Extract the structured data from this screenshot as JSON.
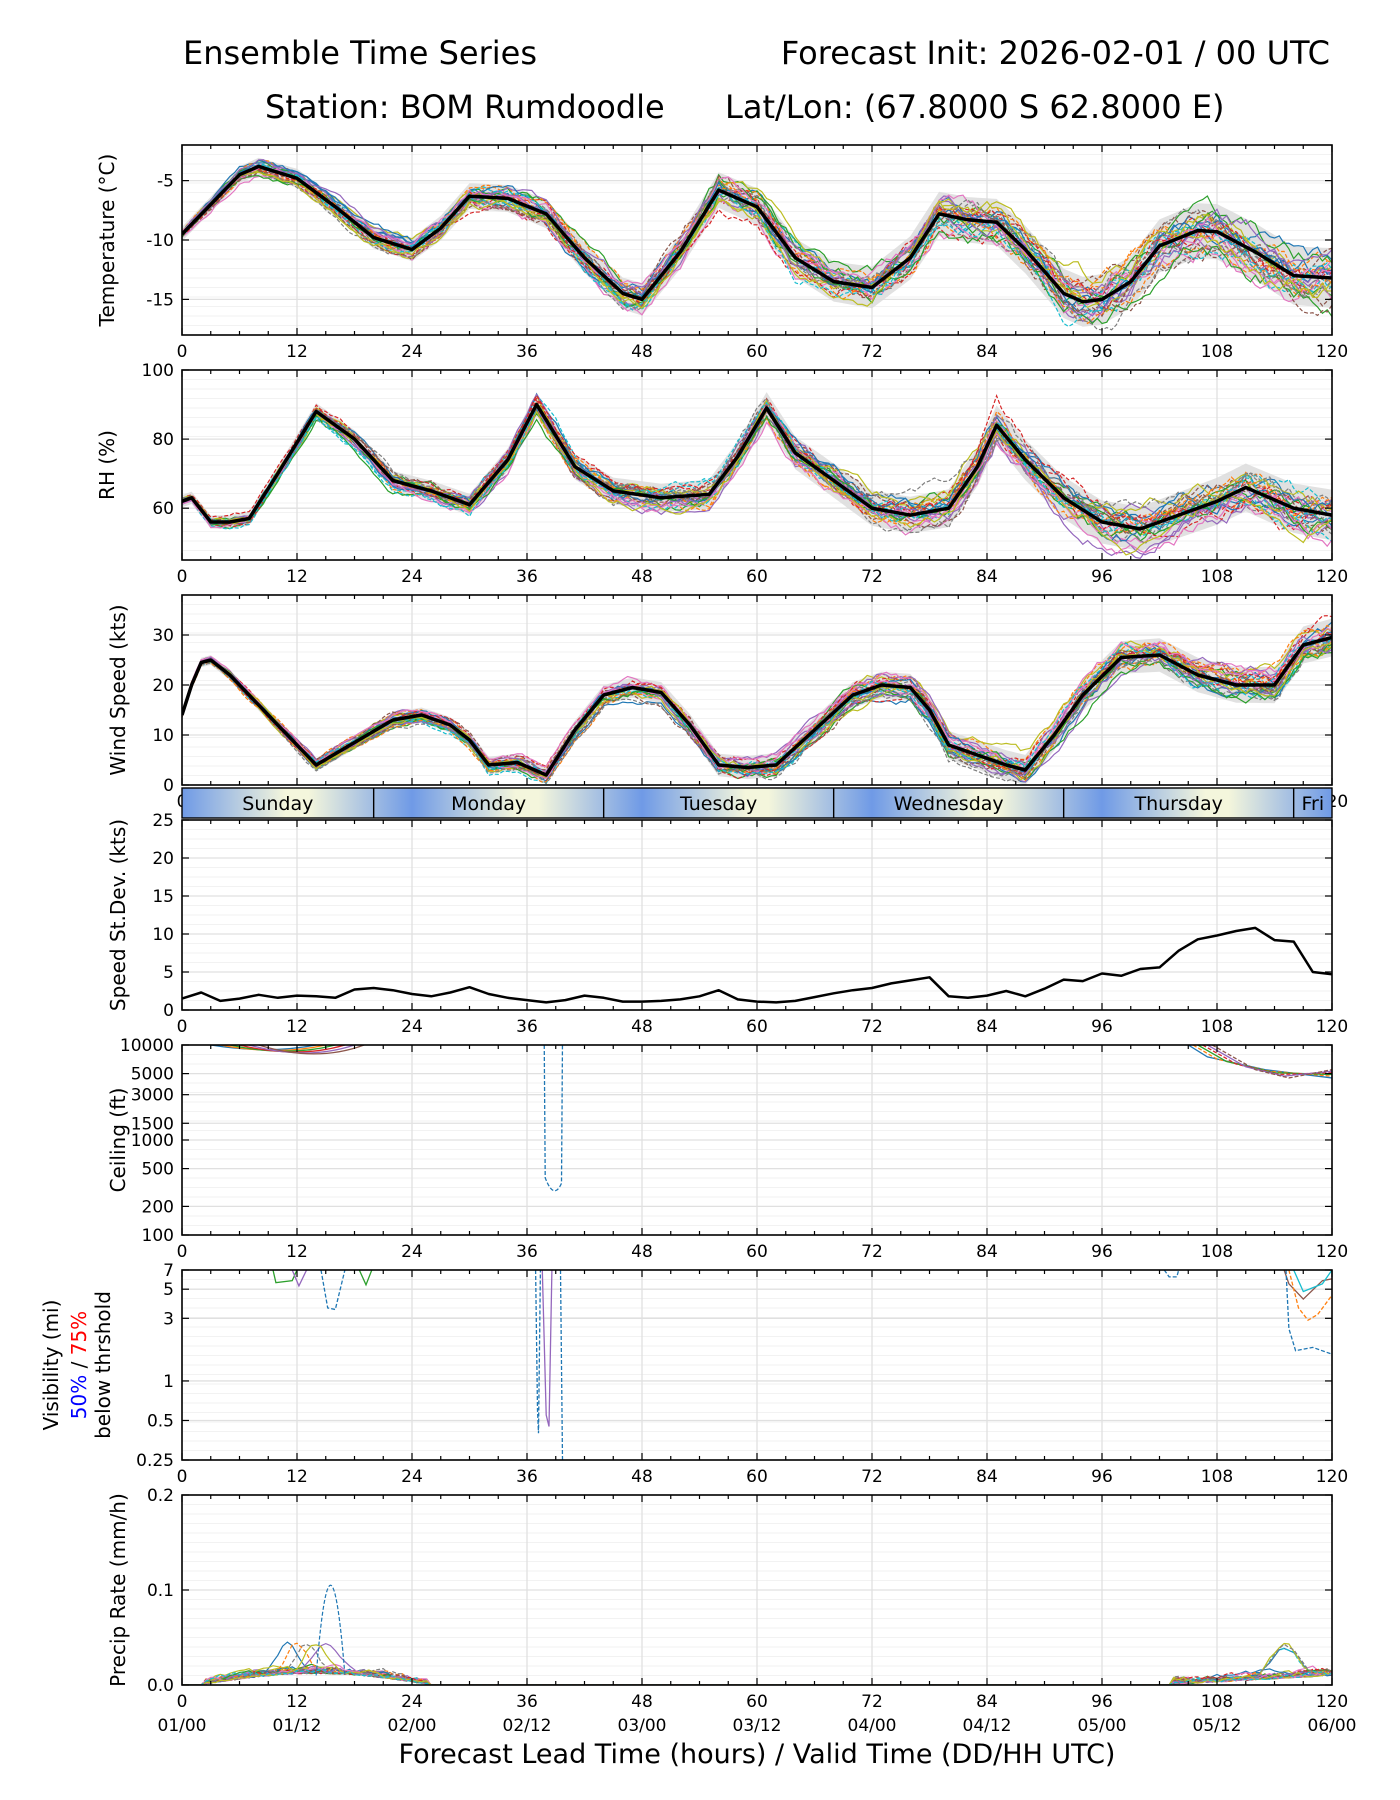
{
  "header": {
    "title_left": "Ensemble Time Series",
    "title_right": "Forecast Init: 2026-02-01 / 00 UTC",
    "station": "Station: BOM Rumdoodle",
    "latlon": "Lat/Lon: (67.8000 S 62.8000 E)"
  },
  "x_axis": {
    "xlabel": "Forecast Lead Time (hours) / Valid Time (DD/HH UTC)",
    "lead_ticks": [
      0,
      12,
      24,
      36,
      48,
      60,
      72,
      84,
      96,
      108,
      120
    ],
    "lead_tick_labels": [
      "0",
      "12",
      "24",
      "36",
      "48",
      "60",
      "72",
      "84",
      "96",
      "108",
      "120"
    ],
    "valid_time_labels": [
      "01/00",
      "01/12",
      "02/00",
      "02/12",
      "03/00",
      "03/12",
      "04/00",
      "04/12",
      "05/00",
      "05/12",
      "06/00"
    ],
    "xlim": [
      0,
      120
    ]
  },
  "day_band": {
    "days": [
      {
        "label": "Sunday",
        "start": 0,
        "end": 20
      },
      {
        "label": "Monday",
        "start": 20,
        "end": 44
      },
      {
        "label": "Tuesday",
        "start": 44,
        "end": 68
      },
      {
        "label": "Wednesday",
        "start": 68,
        "end": 92
      },
      {
        "label": "Thursday",
        "start": 92,
        "end": 116
      },
      {
        "label": "Fri",
        "start": 116,
        "end": 140
      }
    ]
  },
  "colors": {
    "mean": "#000000",
    "spread_fill": "#d9d9d9",
    "grid": "#e0e0e0",
    "ensemble": [
      "#1f77b4",
      "#ff7f0e",
      "#2ca02c",
      "#d62728",
      "#9467bd",
      "#8c564b",
      "#e377c2",
      "#7f7f7f",
      "#bcbd22",
      "#17becf"
    ],
    "day_band_dark": "#6f9ae6",
    "day_band_light": "#f4f6dc",
    "vis_50": "#0000ff",
    "vis_75": "#ff0000"
  },
  "chart_data": [
    {
      "id": "temperature",
      "type": "line",
      "ylabel": "Temperature (°C)",
      "ylim": [
        -18,
        -2
      ],
      "yticks": [
        -5,
        -10,
        -15
      ],
      "ytick_labels": [
        "-5",
        "-10",
        "-15"
      ],
      "x": [
        0,
        3,
        6,
        8,
        12,
        16,
        20,
        24,
        27,
        30,
        34,
        38,
        42,
        46,
        48,
        52,
        56,
        60,
        64,
        68,
        72,
        76,
        79,
        82,
        85,
        88,
        92,
        94,
        96,
        99,
        102,
        106,
        108,
        112,
        116,
        120
      ],
      "mean": [
        -9.5,
        -7,
        -4.5,
        -3.8,
        -4.8,
        -7.2,
        -9.8,
        -10.8,
        -9,
        -6.3,
        -6.5,
        -7.8,
        -11.5,
        -14.5,
        -15,
        -11,
        -5.8,
        -7.2,
        -11.5,
        -13.5,
        -14,
        -11.5,
        -7.8,
        -8.3,
        -8.5,
        -10.8,
        -14.5,
        -15.2,
        -15,
        -13.5,
        -10.5,
        -9.2,
        -9.3,
        -11,
        -13,
        -13.2
      ],
      "spread": 1.2,
      "members": 30
    },
    {
      "id": "rh",
      "type": "line",
      "ylabel": "RH (%)",
      "ylim": [
        45,
        100
      ],
      "yticks": [
        60,
        80,
        100
      ],
      "ytick_labels": [
        "60",
        "80",
        "100"
      ],
      "x": [
        0,
        1,
        3,
        5,
        7,
        10,
        14,
        18,
        22,
        26,
        30,
        34,
        37,
        41,
        45,
        50,
        55,
        58,
        61,
        64,
        68,
        72,
        76,
        80,
        83,
        85,
        88,
        92,
        96,
        100,
        104,
        108,
        111,
        116,
        120
      ],
      "mean": [
        62,
        63,
        56,
        56,
        57,
        70,
        88,
        80,
        68,
        65,
        61,
        74,
        90,
        72,
        65,
        63,
        64,
        75,
        89,
        76,
        68,
        60,
        58,
        60,
        72,
        84,
        74,
        63,
        56,
        54,
        58,
        62,
        66,
        60,
        58
      ],
      "spread": 3.5,
      "members": 30
    },
    {
      "id": "wind_speed",
      "type": "line",
      "ylabel": "Wind Speed (kts)",
      "ylim": [
        0,
        38
      ],
      "yticks": [
        0,
        10,
        20,
        30
      ],
      "ytick_labels": [
        "0",
        "10",
        "20",
        "30"
      ],
      "x": [
        0,
        1,
        2,
        3,
        5,
        7,
        10,
        14,
        18,
        22,
        25,
        28,
        30,
        32,
        35,
        38,
        41,
        44,
        47,
        50,
        53,
        56,
        59,
        62,
        66,
        70,
        73,
        76,
        78,
        80,
        83,
        86,
        88,
        91,
        94,
        98,
        102,
        106,
        110,
        114,
        117,
        120
      ],
      "mean": [
        14,
        20,
        24.5,
        25,
        22,
        18,
        12,
        4,
        8.5,
        13,
        14,
        12,
        9,
        4,
        4.5,
        2,
        11,
        18,
        19.5,
        18.5,
        12,
        4,
        3.5,
        4,
        11,
        18,
        20,
        19.5,
        15,
        8,
        6,
        4,
        3,
        10,
        18,
        25.5,
        26,
        22,
        20,
        20,
        28,
        29.5
      ],
      "spread": 1.8,
      "members": 30
    },
    {
      "id": "speed_stdev",
      "type": "line",
      "ylabel": "Speed St.Dev. (kts)",
      "ylim": [
        0,
        25
      ],
      "yticks": [
        0,
        5,
        10,
        15,
        20,
        25
      ],
      "ytick_labels": [
        "0",
        "5",
        "10",
        "15",
        "20",
        "25"
      ],
      "x": [
        0,
        2,
        4,
        6,
        8,
        10,
        12,
        14,
        16,
        18,
        20,
        22,
        24,
        26,
        28,
        30,
        32,
        34,
        36,
        38,
        40,
        42,
        44,
        46,
        48,
        50,
        52,
        54,
        56,
        58,
        60,
        62,
        64,
        66,
        68,
        70,
        72,
        74,
        76,
        78,
        80,
        82,
        84,
        86,
        88,
        90,
        92,
        94,
        96,
        98,
        100,
        102,
        104,
        106,
        108,
        110,
        112,
        114,
        116,
        118,
        120
      ],
      "mean": [
        1.5,
        2.3,
        1.2,
        1.5,
        2,
        1.6,
        1.9,
        1.8,
        1.6,
        2.7,
        2.9,
        2.6,
        2.1,
        1.8,
        2.3,
        3,
        2.1,
        1.6,
        1.3,
        1,
        1.3,
        1.9,
        1.6,
        1.1,
        1.1,
        1.2,
        1.4,
        1.8,
        2.6,
        1.4,
        1.1,
        1,
        1.2,
        1.7,
        2.2,
        2.6,
        2.9,
        3.5,
        3.9,
        4.3,
        1.8,
        1.6,
        1.9,
        2.5,
        1.8,
        2.8,
        4,
        3.8,
        4.8,
        4.5,
        5.4,
        5.6,
        7.8,
        9.3,
        9.8,
        10.4,
        10.8,
        9.2,
        9,
        5,
        4.7
      ],
      "members": 0
    },
    {
      "id": "ceiling",
      "type": "line",
      "ylabel": "Ceiling (ft)",
      "yscale": "log",
      "ylim": [
        100,
        10000
      ],
      "yticks": [
        100,
        200,
        500,
        1000,
        1500,
        3000,
        5000,
        10000
      ],
      "ytick_labels": [
        "100",
        "200",
        "500",
        "1000",
        "1500",
        "3000",
        "5000",
        "10000"
      ],
      "members": 6
    },
    {
      "id": "visibility",
      "type": "line",
      "ylabel": "Visibility (mi)",
      "yscale": "log",
      "ylabel_sub": [
        "50%",
        " / ",
        "75%"
      ],
      "ylabel_sub2": "below thrshold",
      "ylim": [
        0.25,
        7
      ],
      "yticks": [
        0.25,
        0.5,
        1,
        3,
        5,
        7
      ],
      "ytick_labels": [
        "0.25",
        "0.5",
        "1",
        "3",
        "5",
        "7"
      ],
      "members": 6
    },
    {
      "id": "precip",
      "type": "line",
      "ylabel": "Precip Rate (mm/h)",
      "ylim": [
        0,
        0.2
      ],
      "yticks": [
        0,
        0.1,
        0.2
      ],
      "ytick_labels": [
        "0.0",
        "0.1",
        "0.2"
      ],
      "members": 30
    }
  ]
}
